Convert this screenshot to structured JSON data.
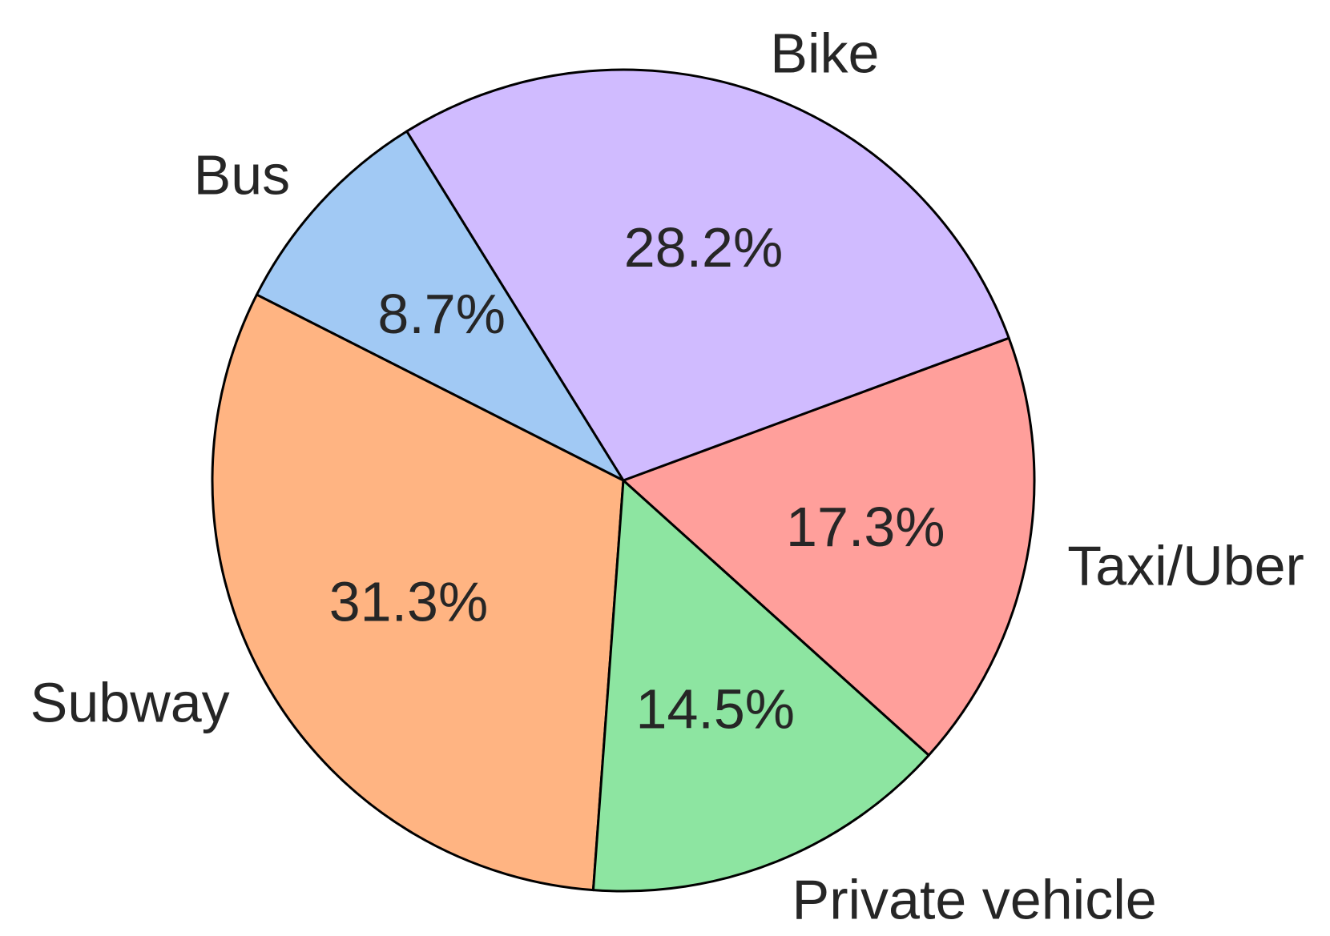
{
  "chart_data": {
    "type": "pie",
    "categories": [
      "Taxi/Uber",
      "Bike",
      "Bus",
      "Subway",
      "Private vehicle"
    ],
    "values": [
      17.3,
      28.2,
      8.7,
      31.3,
      14.5
    ],
    "value_labels": [
      "17.3%",
      "28.2%",
      "8.7%",
      "31.3%",
      "14.5%"
    ],
    "colors": [
      "#ff9f9b",
      "#d0bbff",
      "#a1c9f4",
      "#ffb482",
      "#8de5a1"
    ],
    "title": "",
    "legend": "none"
  }
}
